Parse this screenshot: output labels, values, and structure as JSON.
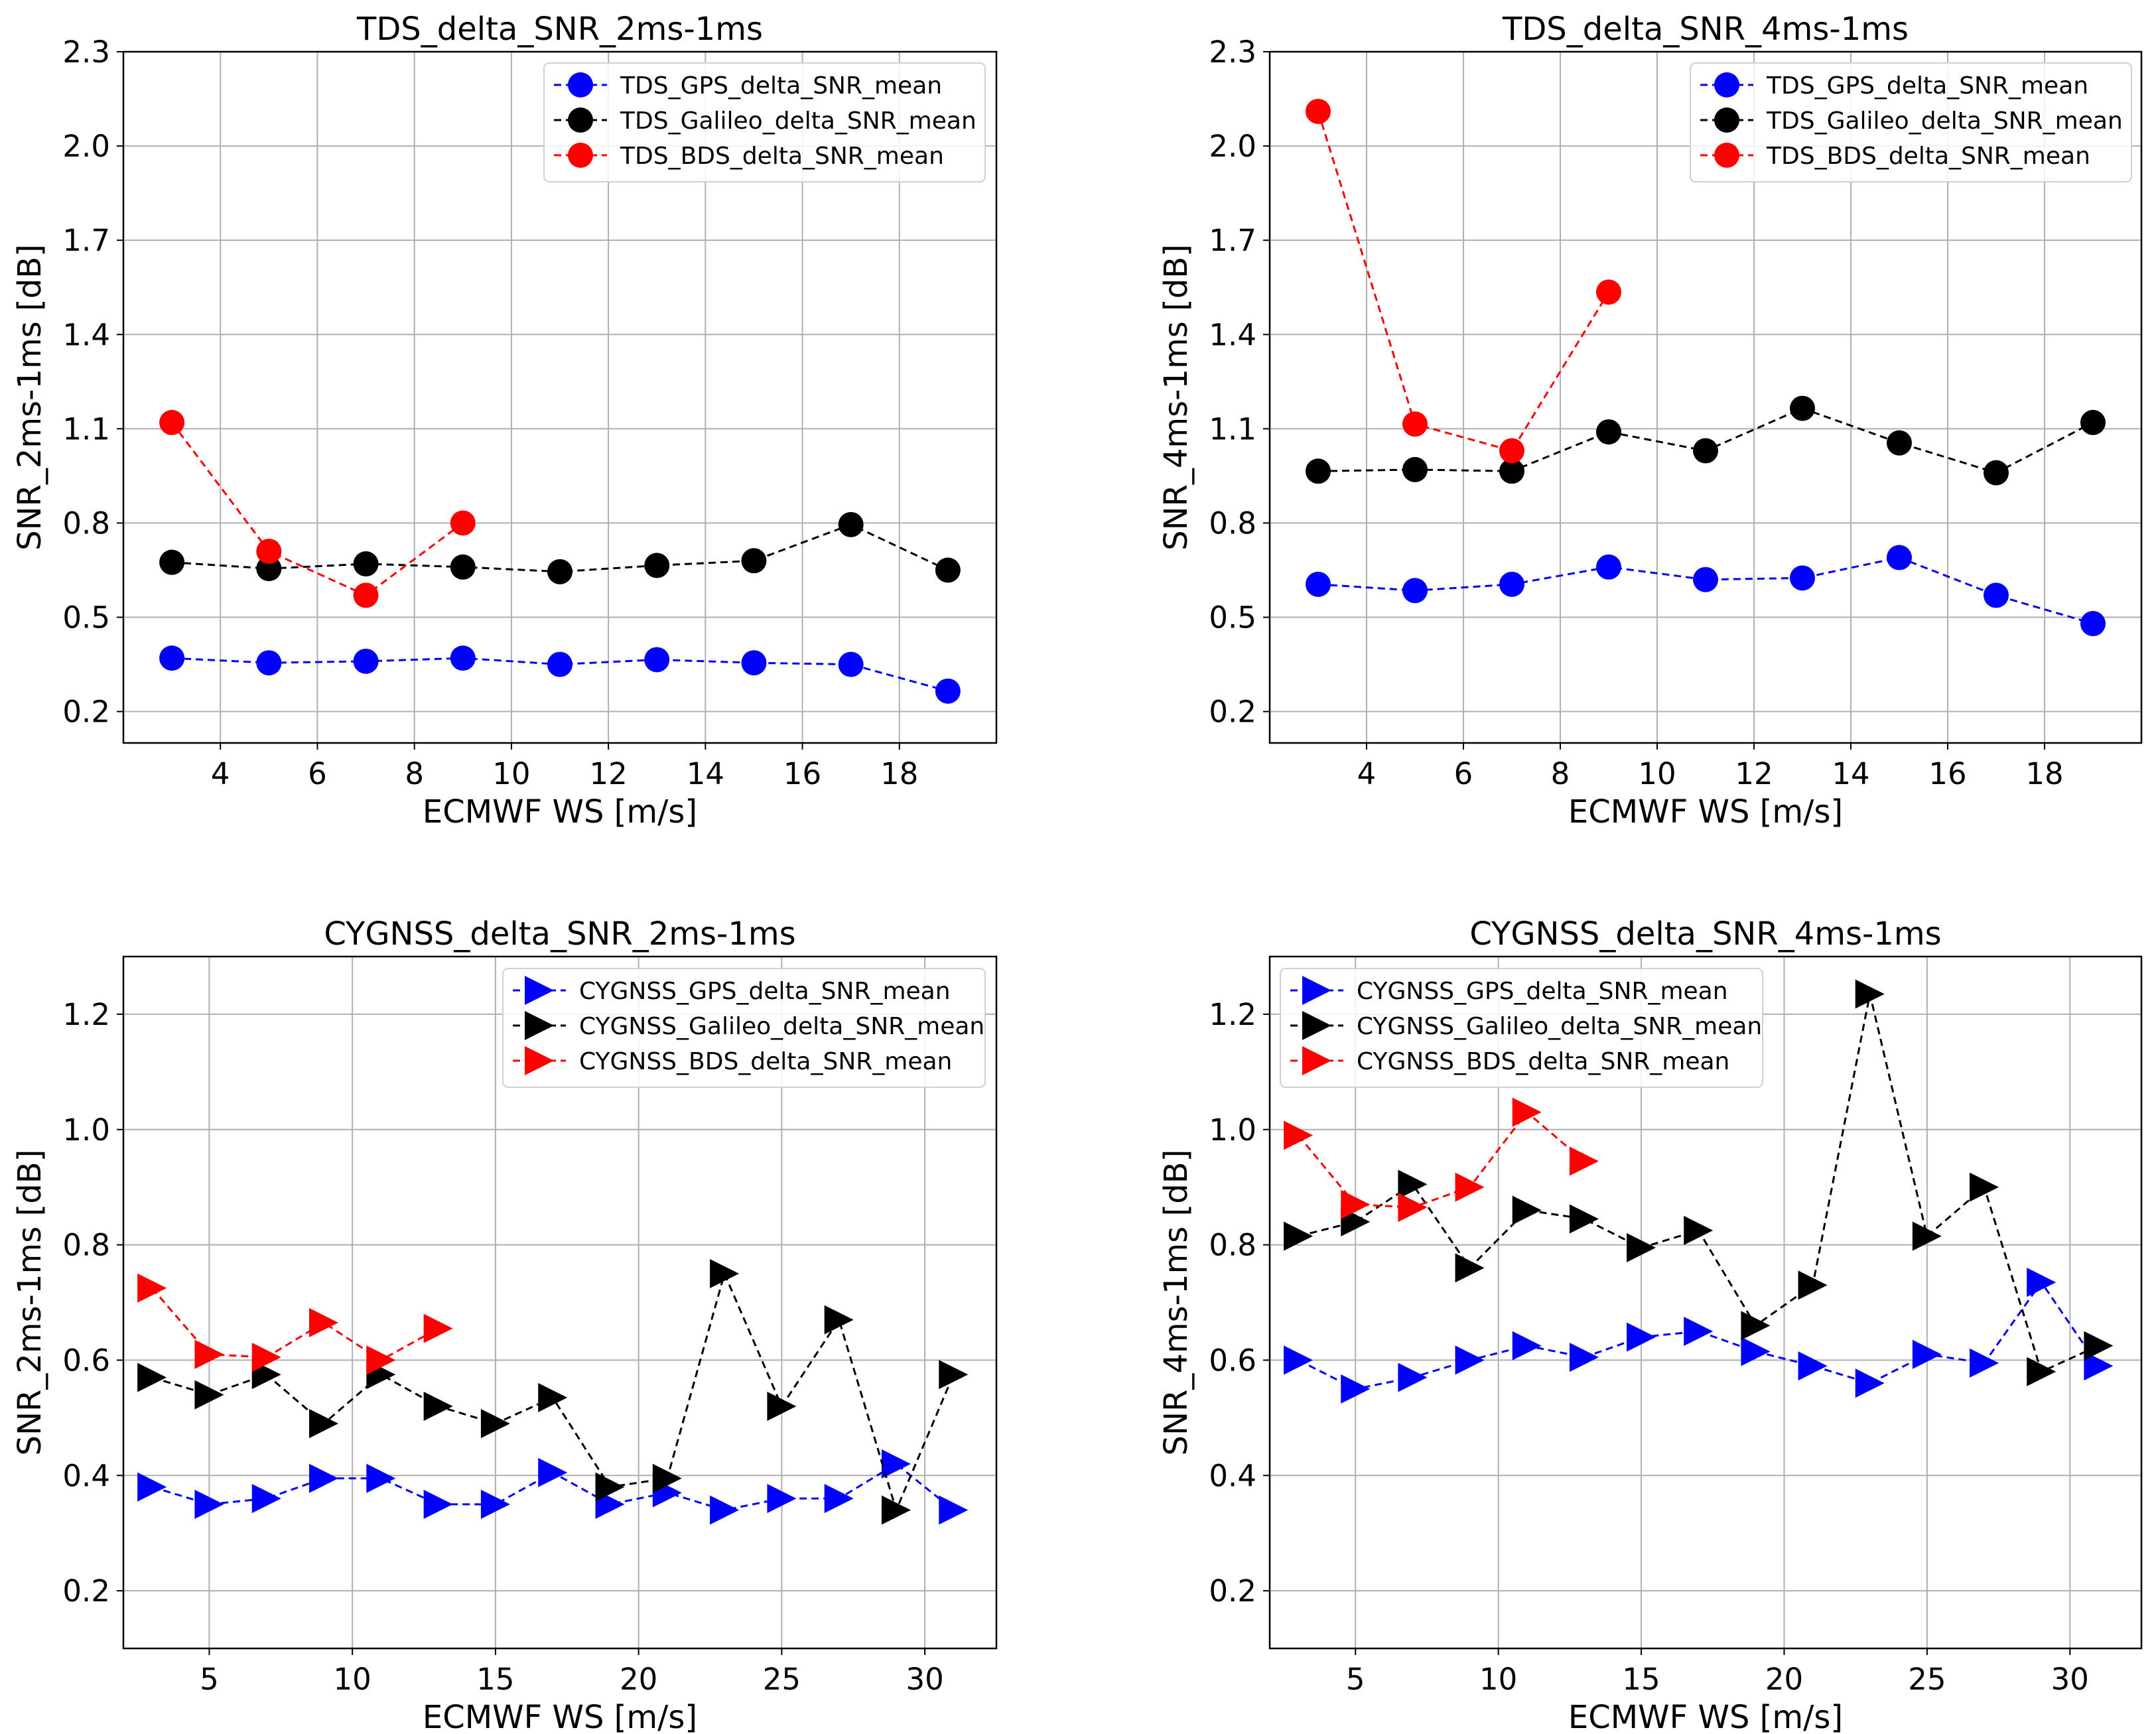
{
  "chart_data": [
    {
      "type": "line",
      "title": "TDS_delta_SNR_2ms-1ms",
      "xlabel": "ECMWF WS [m/s]",
      "ylabel": "SNR_2ms-1ms [dB]",
      "xlim": [
        2.0,
        20.0
      ],
      "ylim": [
        0.1,
        2.3
      ],
      "xticks": [
        4,
        6,
        8,
        10,
        12,
        14,
        16,
        18
      ],
      "yticks": [
        0.2,
        0.5,
        0.8,
        1.1,
        1.4,
        1.7,
        2.0,
        2.3
      ],
      "grid": true,
      "legend_position": "top-right",
      "marker": "circle",
      "series": [
        {
          "name": "TDS_GPS_delta_SNR_mean",
          "color": "#0000ff",
          "x": [
            3,
            5,
            7,
            9,
            11,
            13,
            15,
            17,
            19
          ],
          "values": [
            0.37,
            0.355,
            0.36,
            0.37,
            0.35,
            0.365,
            0.355,
            0.35,
            0.265
          ]
        },
        {
          "name": "TDS_Galileo_delta_SNR_mean",
          "color": "#000000",
          "x": [
            3,
            5,
            7,
            9,
            11,
            13,
            15,
            17,
            19
          ],
          "values": [
            0.675,
            0.655,
            0.67,
            0.66,
            0.645,
            0.665,
            0.68,
            0.795,
            0.65
          ]
        },
        {
          "name": "TDS_BDS_delta_SNR_mean",
          "color": "#ff0000",
          "x": [
            3,
            5,
            7,
            9
          ],
          "values": [
            1.12,
            0.71,
            0.57,
            0.8
          ]
        }
      ]
    },
    {
      "type": "line",
      "title": "TDS_delta_SNR_4ms-1ms",
      "xlabel": "ECMWF WS [m/s]",
      "ylabel": "SNR_4ms-1ms [dB]",
      "xlim": [
        2.0,
        20.0
      ],
      "ylim": [
        0.1,
        2.3
      ],
      "xticks": [
        4,
        6,
        8,
        10,
        12,
        14,
        16,
        18
      ],
      "yticks": [
        0.2,
        0.5,
        0.8,
        1.1,
        1.4,
        1.7,
        2.0,
        2.3
      ],
      "grid": true,
      "legend_position": "top-right",
      "marker": "circle",
      "series": [
        {
          "name": "TDS_GPS_delta_SNR_mean",
          "color": "#0000ff",
          "x": [
            3,
            5,
            7,
            9,
            11,
            13,
            15,
            17,
            19
          ],
          "values": [
            0.605,
            0.585,
            0.605,
            0.66,
            0.62,
            0.625,
            0.69,
            0.57,
            0.48
          ]
        },
        {
          "name": "TDS_Galileo_delta_SNR_mean",
          "color": "#000000",
          "x": [
            3,
            5,
            7,
            9,
            11,
            13,
            15,
            17,
            19
          ],
          "values": [
            0.965,
            0.97,
            0.965,
            1.09,
            1.03,
            1.165,
            1.055,
            0.96,
            1.12
          ]
        },
        {
          "name": "TDS_BDS_delta_SNR_mean",
          "color": "#ff0000",
          "x": [
            3,
            5,
            7,
            9
          ],
          "values": [
            2.11,
            1.115,
            1.03,
            1.535
          ]
        }
      ]
    },
    {
      "type": "line",
      "title": "CYGNSS_delta_SNR_2ms-1ms",
      "xlabel": "ECMWF WS [m/s]",
      "ylabel": "SNR_2ms-1ms [dB]",
      "xlim": [
        2.0,
        32.5
      ],
      "ylim": [
        0.1,
        1.3
      ],
      "xticks": [
        5,
        10,
        15,
        20,
        25,
        30
      ],
      "yticks": [
        0.2,
        0.4,
        0.6,
        0.8,
        1.0,
        1.2
      ],
      "grid": true,
      "legend_position": "top-right",
      "marker": "triangle-right",
      "series": [
        {
          "name": "CYGNSS_GPS_delta_SNR_mean",
          "color": "#0000ff",
          "x": [
            3,
            5,
            7,
            9,
            11,
            13,
            15,
            17,
            19,
            21,
            23,
            25,
            27,
            29,
            31
          ],
          "values": [
            0.38,
            0.35,
            0.36,
            0.395,
            0.395,
            0.35,
            0.35,
            0.405,
            0.35,
            0.37,
            0.34,
            0.36,
            0.36,
            0.42,
            0.34
          ]
        },
        {
          "name": "CYGNSS_Galileo_delta_SNR_mean",
          "color": "#000000",
          "x": [
            3,
            5,
            7,
            9,
            11,
            13,
            15,
            17,
            19,
            21,
            23,
            25,
            27,
            29,
            31
          ],
          "values": [
            0.57,
            0.54,
            0.575,
            0.49,
            0.575,
            0.52,
            0.49,
            0.535,
            0.38,
            0.395,
            0.75,
            0.52,
            0.67,
            0.34,
            0.575
          ]
        },
        {
          "name": "CYGNSS_BDS_delta_SNR_mean",
          "color": "#ff0000",
          "x": [
            3,
            5,
            7,
            9,
            11,
            13
          ],
          "values": [
            0.725,
            0.61,
            0.605,
            0.665,
            0.6,
            0.655
          ]
        }
      ]
    },
    {
      "type": "line",
      "title": "CYGNSS_delta_SNR_4ms-1ms",
      "xlabel": "ECMWF WS [m/s]",
      "ylabel": "SNR_4ms-1ms [dB]",
      "xlim": [
        2.0,
        32.5
      ],
      "ylim": [
        0.1,
        1.3
      ],
      "xticks": [
        5,
        10,
        15,
        20,
        25,
        30
      ],
      "yticks": [
        0.2,
        0.4,
        0.6,
        0.8,
        1.0,
        1.2
      ],
      "grid": true,
      "legend_position": "top-left",
      "marker": "triangle-right",
      "series": [
        {
          "name": "CYGNSS_GPS_delta_SNR_mean",
          "color": "#0000ff",
          "x": [
            3,
            5,
            7,
            9,
            11,
            13,
            15,
            17,
            19,
            21,
            23,
            25,
            27,
            29,
            31
          ],
          "values": [
            0.6,
            0.55,
            0.57,
            0.6,
            0.625,
            0.605,
            0.64,
            0.65,
            0.615,
            0.59,
            0.56,
            0.61,
            0.595,
            0.735,
            0.59
          ]
        },
        {
          "name": "CYGNSS_Galileo_delta_SNR_mean",
          "color": "#000000",
          "x": [
            3,
            5,
            7,
            9,
            11,
            13,
            15,
            17,
            19,
            21,
            23,
            25,
            27,
            29,
            31
          ],
          "values": [
            0.815,
            0.84,
            0.905,
            0.76,
            0.86,
            0.845,
            0.795,
            0.825,
            0.66,
            0.73,
            1.235,
            0.815,
            0.9,
            0.58,
            0.625
          ]
        },
        {
          "name": "CYGNSS_BDS_delta_SNR_mean",
          "color": "#ff0000",
          "x": [
            3,
            5,
            7,
            9,
            11,
            13
          ],
          "values": [
            0.99,
            0.87,
            0.865,
            0.9,
            1.03,
            0.945
          ]
        }
      ]
    }
  ]
}
